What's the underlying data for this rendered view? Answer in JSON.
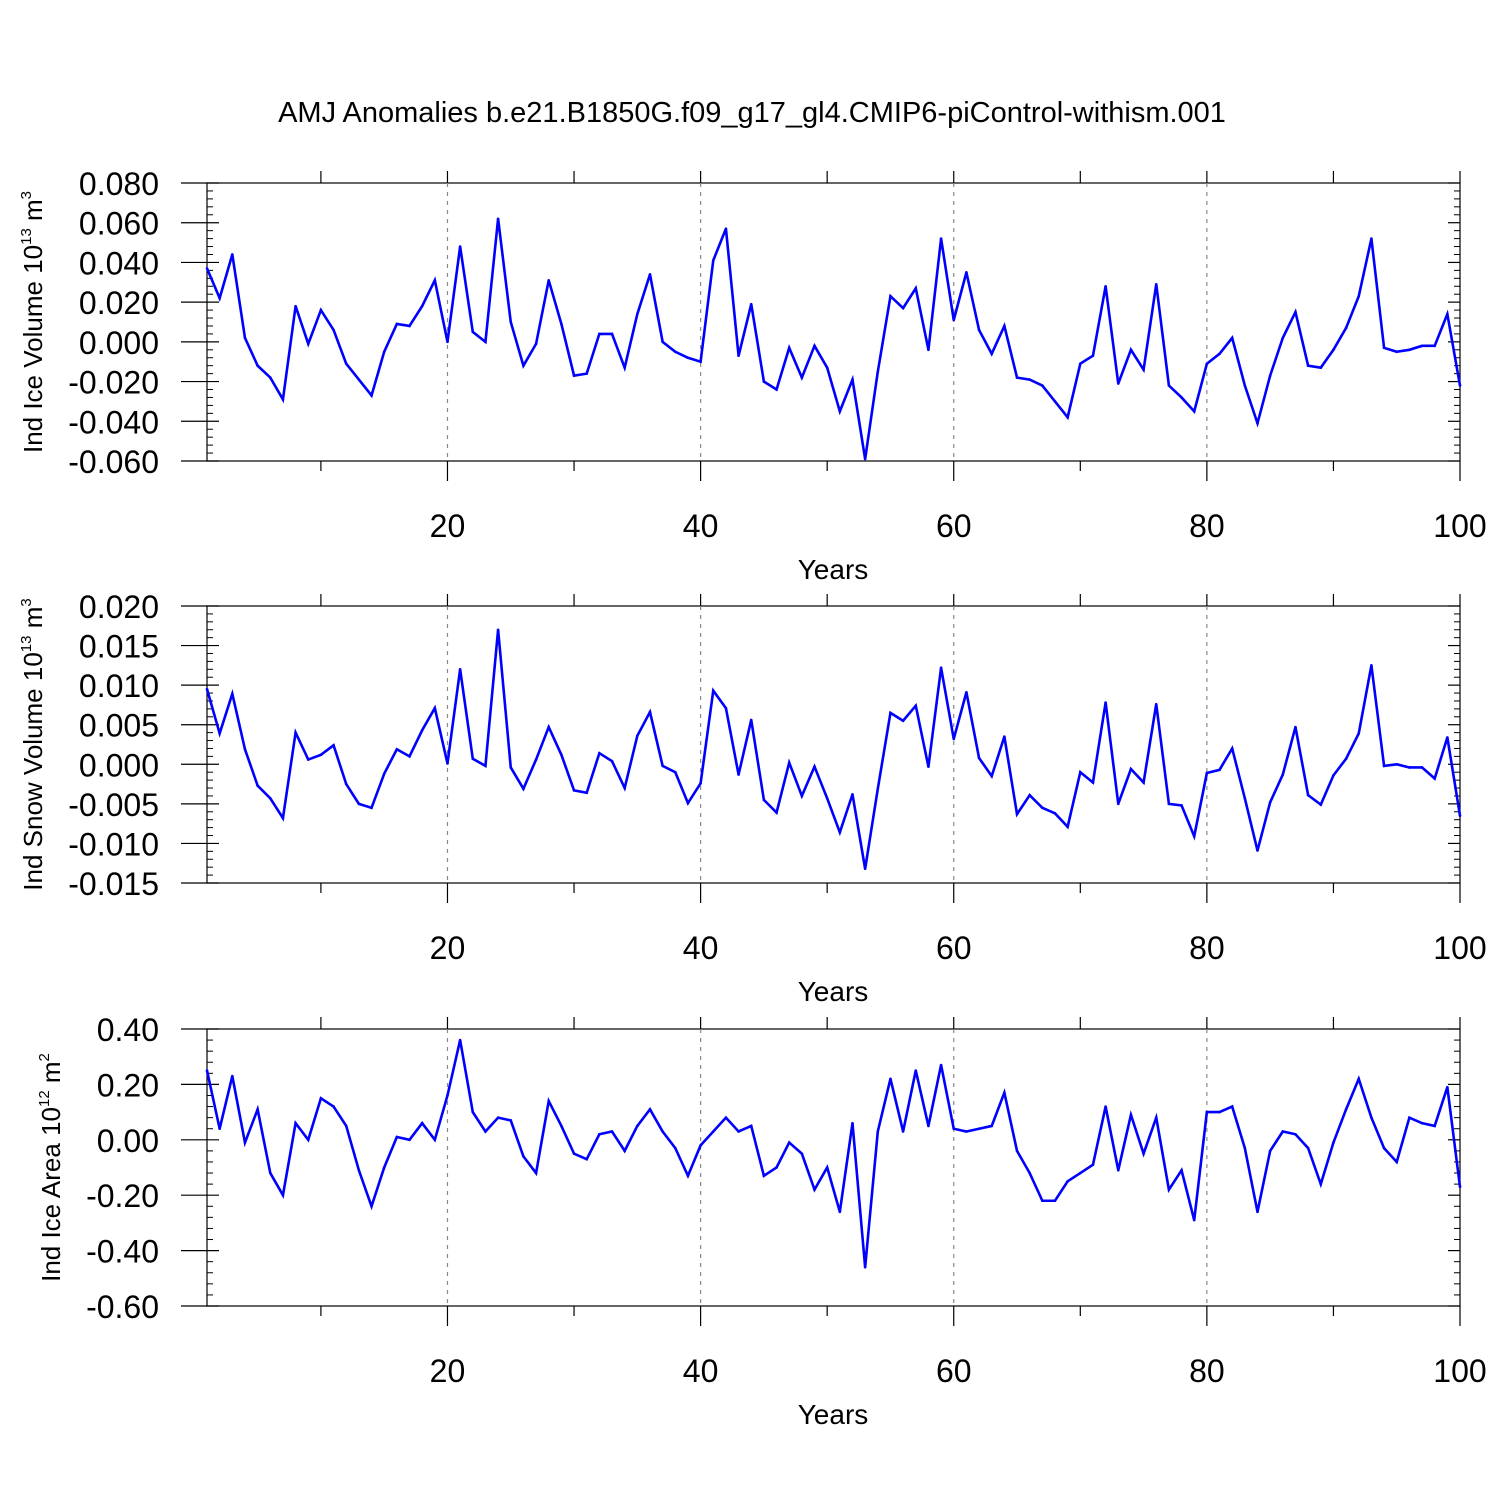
{
  "title": "AMJ Anomalies b.e21.B1850G.f09_g17_gl4.CMIP6-piControl-withism.001",
  "colors": {
    "line": "#0000ff",
    "axis": "#000000",
    "grid": "#8a8a8a"
  },
  "chart_data": [
    {
      "type": "line",
      "ylabel": {
        "text": "Ind Ice Volume 10",
        "exp": "13",
        "unit": " m",
        "unit_exp": "3"
      },
      "xlabel": "Years",
      "xlim": [
        1,
        100
      ],
      "ylim": [
        -0.06,
        0.08
      ],
      "yticks": [
        0.08,
        0.06,
        0.04,
        0.02,
        0.0,
        -0.02,
        -0.04,
        -0.06
      ],
      "ytick_labels": [
        "0.080",
        "0.060",
        "0.040",
        "0.020",
        "0.000",
        "-0.020",
        "-0.040",
        "-0.060"
      ],
      "xticks": [
        20,
        40,
        60,
        80,
        100
      ],
      "xtick_labels": [
        "20",
        "40",
        "60",
        "80",
        "100"
      ],
      "grid_x": [
        20,
        40,
        60,
        80
      ],
      "series": [
        {
          "name": "Ind Ice Volume",
          "x_start": 1,
          "values": [
            0.037,
            0.022,
            0.044,
            0.002,
            -0.012,
            -0.018,
            -0.029,
            0.018,
            -0.001,
            0.016,
            0.006,
            -0.011,
            -0.019,
            -0.027,
            -0.005,
            0.009,
            0.008,
            0.018,
            0.031,
            0.0,
            0.048,
            0.005,
            0.0,
            0.062,
            0.01,
            -0.012,
            -0.001,
            0.031,
            0.009,
            -0.017,
            -0.016,
            0.004,
            0.004,
            -0.013,
            0.014,
            0.034,
            0.0,
            -0.005,
            -0.008,
            -0.01,
            0.041,
            0.057,
            -0.007,
            0.019,
            -0.02,
            -0.024,
            -0.003,
            -0.018,
            -0.002,
            -0.013,
            -0.035,
            -0.019,
            -0.059,
            -0.015,
            0.023,
            0.017,
            0.027,
            -0.004,
            0.052,
            0.011,
            0.035,
            0.006,
            -0.006,
            0.008,
            -0.018,
            -0.019,
            -0.022,
            -0.03,
            -0.038,
            -0.011,
            -0.007,
            0.028,
            -0.021,
            -0.004,
            -0.014,
            0.029,
            -0.022,
            -0.028,
            -0.035,
            -0.011,
            -0.006,
            0.002,
            -0.022,
            -0.041,
            -0.017,
            0.002,
            0.015,
            -0.012,
            -0.013,
            -0.004,
            0.007,
            0.023,
            0.052,
            -0.003,
            -0.005,
            -0.004,
            -0.002,
            -0.002,
            0.014,
            -0.022
          ]
        }
      ]
    },
    {
      "type": "line",
      "ylabel": {
        "text": "Ind Snow Volume 10",
        "exp": "13",
        "unit": " m",
        "unit_exp": "3"
      },
      "xlabel": "Years",
      "xlim": [
        1,
        100
      ],
      "ylim": [
        -0.015,
        0.02
      ],
      "yticks": [
        0.02,
        0.015,
        0.01,
        0.005,
        0.0,
        -0.005,
        -0.01,
        -0.015
      ],
      "ytick_labels": [
        "0.020",
        "0.015",
        "0.010",
        "0.005",
        "0.000",
        "-0.005",
        "-0.010",
        "-0.015"
      ],
      "xticks": [
        20,
        40,
        60,
        80,
        100
      ],
      "xtick_labels": [
        "20",
        "40",
        "60",
        "80",
        "100"
      ],
      "grid_x": [
        20,
        40,
        60,
        80
      ],
      "series": [
        {
          "name": "Ind Snow Volume",
          "x_start": 1,
          "values": [
            0.0095,
            0.0039,
            0.0089,
            0.0019,
            -0.0027,
            -0.0043,
            -0.0068,
            0.004,
            0.0006,
            0.0012,
            0.0024,
            -0.0025,
            -0.005,
            -0.0055,
            -0.0012,
            0.0019,
            0.001,
            0.0043,
            0.0071,
            0.0001,
            0.012,
            0.0007,
            -0.0002,
            0.017,
            -0.0004,
            -0.0031,
            0.0006,
            0.0047,
            0.0012,
            -0.0033,
            -0.0036,
            0.0014,
            0.0004,
            -0.003,
            0.0036,
            0.0066,
            -0.0002,
            -0.001,
            -0.0049,
            -0.0024,
            0.0093,
            0.0071,
            -0.0013,
            0.0056,
            -0.0045,
            -0.0061,
            0.0002,
            -0.004,
            -0.0003,
            -0.0043,
            -0.0086,
            -0.0038,
            -0.0132,
            -0.0031,
            0.0065,
            0.0055,
            0.0074,
            -0.0003,
            0.0122,
            0.0032,
            0.0091,
            0.0008,
            -0.0015,
            0.0035,
            -0.0063,
            -0.0039,
            -0.0055,
            -0.0062,
            -0.0079,
            -0.001,
            -0.0023,
            0.0078,
            -0.005,
            -0.0006,
            -0.0023,
            0.0076,
            -0.005,
            -0.0052,
            -0.0091,
            -0.0011,
            -0.0007,
            0.002,
            -0.0043,
            -0.0109,
            -0.0048,
            -0.0013,
            0.0047,
            -0.0039,
            -0.0051,
            -0.0014,
            0.0007,
            0.0039,
            0.0125,
            -0.0002,
            0.0,
            -0.0004,
            -0.0004,
            -0.0018,
            0.0034,
            -0.0065
          ]
        }
      ]
    },
    {
      "type": "line",
      "ylabel": {
        "text": "Ind Ice Area 10",
        "exp": "12",
        "unit": " m",
        "unit_exp": "2"
      },
      "xlabel": "Years",
      "xlim": [
        1,
        100
      ],
      "ylim": [
        -0.6,
        0.4
      ],
      "yticks": [
        0.4,
        0.2,
        0.0,
        -0.2,
        -0.4,
        -0.6
      ],
      "ytick_labels": [
        "0.40",
        "0.20",
        "0.00",
        "-0.20",
        "-0.40",
        "-0.60"
      ],
      "xticks": [
        20,
        40,
        60,
        80,
        100
      ],
      "xtick_labels": [
        "20",
        "40",
        "60",
        "80",
        "100"
      ],
      "grid_x": [
        20,
        40,
        60,
        80
      ],
      "series": [
        {
          "name": "Ind Ice Area",
          "x_start": 1,
          "values": [
            0.25,
            0.04,
            0.23,
            -0.01,
            0.11,
            -0.12,
            -0.2,
            0.06,
            0.0,
            0.15,
            0.12,
            0.05,
            -0.11,
            -0.24,
            -0.1,
            0.01,
            0.0,
            0.06,
            0.0,
            0.16,
            0.36,
            0.1,
            0.03,
            0.08,
            0.07,
            -0.06,
            -0.12,
            0.14,
            0.05,
            -0.05,
            -0.07,
            0.02,
            0.03,
            -0.04,
            0.05,
            0.11,
            0.03,
            -0.03,
            -0.13,
            -0.02,
            0.03,
            0.08,
            0.03,
            0.05,
            -0.13,
            -0.1,
            -0.01,
            -0.05,
            -0.18,
            -0.1,
            -0.26,
            0.06,
            -0.46,
            0.03,
            0.22,
            0.03,
            0.25,
            0.05,
            0.27,
            0.04,
            0.03,
            0.04,
            0.05,
            0.17,
            -0.04,
            -0.12,
            -0.22,
            -0.22,
            -0.15,
            -0.12,
            -0.09,
            0.12,
            -0.11,
            0.09,
            -0.05,
            0.08,
            -0.18,
            -0.11,
            -0.29,
            0.1,
            0.1,
            0.12,
            -0.03,
            -0.26,
            -0.04,
            0.03,
            0.02,
            -0.03,
            -0.16,
            -0.01,
            0.11,
            0.22,
            0.08,
            -0.03,
            -0.08,
            0.08,
            0.06,
            0.05,
            0.19,
            -0.17
          ]
        }
      ]
    }
  ]
}
